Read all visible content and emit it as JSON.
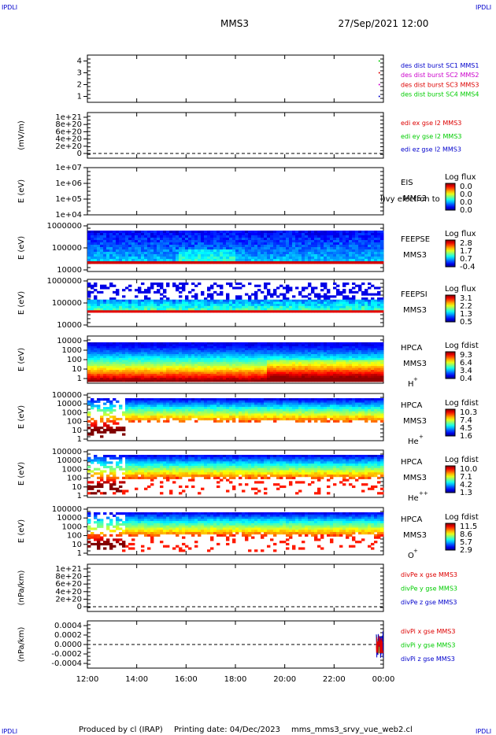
{
  "header": {
    "corner_label": "IPDLI",
    "spacecraft": "MMS3",
    "datetime": "27/Sep/2021 12:00"
  },
  "footer": {
    "producer": "Produced by cl (IRAP)",
    "printing_date": "Printing date: 04/Dec/2023",
    "filename": "mms_mms3_srvy_vue_web2.cl"
  },
  "colors": {
    "blue": "#0000cc",
    "magenta": "#cc00cc",
    "red": "#dd0000",
    "green": "#00cc00",
    "dark_red": "#b00000"
  },
  "chart_data": [
    {
      "type": "scatter",
      "panel": "burst",
      "ylim": [
        0.5,
        4.5
      ],
      "yticks": [
        "1",
        "2",
        "3",
        "4"
      ],
      "legend": [
        "des dist burst SC1 MMS1",
        "des dist burst SC2 MMS2",
        "des dist burst SC3 MMS3",
        "des dist burst SC4 MMS4"
      ],
      "series": [
        {
          "name": "des dist burst SC1 MMS1",
          "x": [
            "23:50"
          ],
          "y": [
            1
          ],
          "color": "#0000cc"
        },
        {
          "name": "des dist burst SC2 MMS2",
          "x": [
            "23:50"
          ],
          "y": [
            2
          ],
          "color": "#cc00cc"
        },
        {
          "name": "des dist burst SC3 MMS3",
          "x": [
            "23:50"
          ],
          "y": [
            3
          ],
          "color": "#dd0000"
        },
        {
          "name": "des dist burst SC4 MMS4",
          "x": [
            "23:50"
          ],
          "y": [
            4
          ],
          "color": "#00cc00"
        }
      ]
    },
    {
      "type": "line",
      "panel": "edi",
      "ylabel": "(mV/m)",
      "yticks": [
        "1e+21",
        "8e+20",
        "6e+20",
        "4e+20",
        "2e+20",
        "0"
      ],
      "legend": [
        "edi ex gse l2 MMS3",
        "edi ey gse l2 MMS3",
        "edi ez gse l2 MMS3"
      ],
      "legend_colors": [
        "#dd0000",
        "#00cc00",
        "#0000cc"
      ],
      "zero_line": true
    },
    {
      "type": "heatmap",
      "panel": "eis",
      "ylabel": "E (eV)",
      "yscale": "log",
      "yticks": [
        "1e+07",
        "1e+06",
        "1e+05",
        "1e+04"
      ],
      "instrument": "EIS",
      "spacecraft": "MMS3",
      "overlay_text": "l)vy electron to",
      "colorbar": {
        "title": "Log flux",
        "ticks": [
          "0.0",
          "0.0",
          "0.0",
          "0.0"
        ]
      }
    },
    {
      "type": "heatmap",
      "panel": "feeps_e",
      "ylabel": "E (eV)",
      "yscale": "log",
      "yticks": [
        "1000000",
        "100000",
        "10000"
      ],
      "instrument": "FEEPSE",
      "spacecraft": "MMS3",
      "colorbar": {
        "title": "Log flux",
        "ticks": [
          "2.8",
          "1.7",
          "0.7",
          "-0.4"
        ]
      }
    },
    {
      "type": "heatmap",
      "panel": "feeps_i",
      "ylabel": "E (eV)",
      "yscale": "log",
      "yticks": [
        "1000000",
        "100000",
        "10000"
      ],
      "instrument": "FEEPSI",
      "spacecraft": "MMS3",
      "colorbar": {
        "title": "Log flux",
        "ticks": [
          "3.1",
          "2.2",
          "1.3",
          "0.5"
        ]
      }
    },
    {
      "type": "heatmap",
      "panel": "hpca_h",
      "ylabel": "E (eV)",
      "yscale": "log",
      "yticks": [
        "10000",
        "1000",
        "100",
        "10",
        "1"
      ],
      "instrument": "HPCA",
      "spacecraft": "MMS3",
      "species": "H",
      "charge": "+",
      "colorbar": {
        "title": "Log fdist",
        "ticks": [
          "9.3",
          "6.4",
          "3.4",
          "0.4"
        ]
      }
    },
    {
      "type": "heatmap",
      "panel": "hpca_he",
      "ylabel": "E (eV)",
      "yscale": "log",
      "yticks": [
        "100000",
        "10000",
        "1000",
        "100",
        "10",
        "1"
      ],
      "instrument": "HPCA",
      "spacecraft": "MMS3",
      "species": "He",
      "charge": "+",
      "colorbar": {
        "title": "Log fdist",
        "ticks": [
          "10.3",
          "7.4",
          "4.5",
          "1.6"
        ]
      }
    },
    {
      "type": "heatmap",
      "panel": "hpca_hepp",
      "ylabel": "E (eV)",
      "yscale": "log",
      "yticks": [
        "100000",
        "10000",
        "1000",
        "100",
        "10",
        "1"
      ],
      "instrument": "HPCA",
      "spacecraft": "MMS3",
      "species": "He",
      "charge": "++",
      "colorbar": {
        "title": "Log fdist",
        "ticks": [
          "10.0",
          "7.1",
          "4.2",
          "1.3"
        ]
      }
    },
    {
      "type": "heatmap",
      "panel": "hpca_o",
      "ylabel": "E (eV)",
      "yscale": "log",
      "yticks": [
        "100000",
        "10000",
        "1000",
        "100",
        "10",
        "1"
      ],
      "instrument": "HPCA",
      "spacecraft": "MMS3",
      "species": "O",
      "charge": "+",
      "colorbar": {
        "title": "Log fdist",
        "ticks": [
          "11.5",
          "8.6",
          "5.7",
          "2.9"
        ]
      }
    },
    {
      "type": "line",
      "panel": "divpe",
      "ylabel": "(nPa/km)",
      "yticks": [
        "1e+21",
        "8e+20",
        "6e+20",
        "4e+20",
        "2e+20",
        "0"
      ],
      "legend": [
        "divPe x gse MMS3",
        "divPe y gse MMS3",
        "divPe z gse MMS3"
      ],
      "legend_colors": [
        "#dd0000",
        "#00cc00",
        "#0000cc"
      ],
      "zero_line": true
    },
    {
      "type": "line",
      "panel": "divpi",
      "ylabel": "(nPa/km)",
      "ylim": [
        -0.0005,
        0.0005
      ],
      "yticks": [
        "0.0004",
        "0.0002",
        "0.0000",
        "-0.0002",
        "-0.0004"
      ],
      "legend": [
        "divPi x gse MMS3",
        "divPi y gse MMS3",
        "divPi z gse MMS3"
      ],
      "legend_colors": [
        "#dd0000",
        "#00cc00",
        "#0000cc"
      ],
      "zero_line": true
    }
  ],
  "x_axis": {
    "ticks": [
      "12:00",
      "14:00",
      "16:00",
      "18:00",
      "20:00",
      "22:00",
      "00:00"
    ]
  }
}
